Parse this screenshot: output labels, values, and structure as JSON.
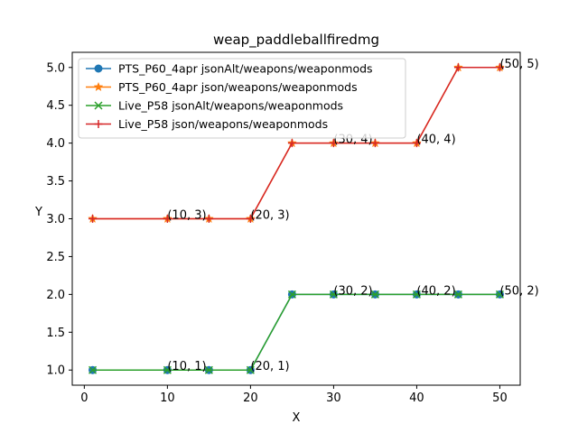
{
  "chart_data": {
    "type": "line",
    "title": "weap_paddleballfiredmg",
    "xlabel": "X",
    "ylabel": "Y",
    "xlim": [
      -1.45,
      52.45
    ],
    "ylim": [
      0.8,
      5.2
    ],
    "x_ticks": [
      0,
      10,
      20,
      30,
      40,
      50
    ],
    "y_ticks": [
      1.0,
      1.5,
      2.0,
      2.5,
      3.0,
      3.5,
      4.0,
      4.5,
      5.0
    ],
    "x_tick_labels": [
      "0",
      "10",
      "20",
      "30",
      "40",
      "50"
    ],
    "y_tick_labels": [
      "1.0",
      "1.5",
      "2.0",
      "2.5",
      "3.0",
      "3.5",
      "4.0",
      "4.5",
      "5.0"
    ],
    "grid": false,
    "legend_position": "top-left",
    "series": [
      {
        "name": "PTS_P60_4apr jsonAlt/weapons/weaponmods",
        "color": "#1f77b4",
        "marker": "circle",
        "x": [
          1,
          10,
          15,
          20,
          25,
          30,
          35,
          40,
          45,
          50
        ],
        "y": [
          1,
          1,
          1,
          1,
          2,
          2,
          2,
          2,
          2,
          2
        ]
      },
      {
        "name": "PTS_P60_4apr json/weapons/weaponmods",
        "color": "#ff7f0e",
        "marker": "star",
        "x": [
          1,
          10,
          15,
          20,
          25,
          30,
          35,
          40,
          45,
          50
        ],
        "y": [
          3,
          3,
          3,
          3,
          4,
          4,
          4,
          4,
          5,
          5
        ]
      },
      {
        "name": "Live_P58 jsonAlt/weapons/weaponmods",
        "color": "#2ca02c",
        "marker": "x",
        "x": [
          1,
          10,
          15,
          20,
          25,
          30,
          35,
          40,
          45,
          50
        ],
        "y": [
          1,
          1,
          1,
          1,
          2,
          2,
          2,
          2,
          2,
          2
        ]
      },
      {
        "name": "Live_P58 json/weapons/weaponmods",
        "color": "#d62728",
        "marker": "plus",
        "x": [
          1,
          10,
          15,
          20,
          25,
          30,
          35,
          40,
          45,
          50
        ],
        "y": [
          3,
          3,
          3,
          3,
          4,
          4,
          4,
          4,
          5,
          5
        ]
      }
    ],
    "annotations": [
      {
        "text": "(10, 1)",
        "x": 10,
        "y": 1
      },
      {
        "text": "(20, 1)",
        "x": 20,
        "y": 1
      },
      {
        "text": "(30, 2)",
        "x": 30,
        "y": 2
      },
      {
        "text": "(40, 2)",
        "x": 40,
        "y": 2
      },
      {
        "text": "(50, 2)",
        "x": 50,
        "y": 2
      },
      {
        "text": "(10, 3)",
        "x": 10,
        "y": 3
      },
      {
        "text": "(20, 3)",
        "x": 20,
        "y": 3
      },
      {
        "text": "(30, 4)",
        "x": 30,
        "y": 4
      },
      {
        "text": "(40, 4)",
        "x": 40,
        "y": 4
      },
      {
        "text": "(50, 5)",
        "x": 50,
        "y": 5
      }
    ]
  }
}
